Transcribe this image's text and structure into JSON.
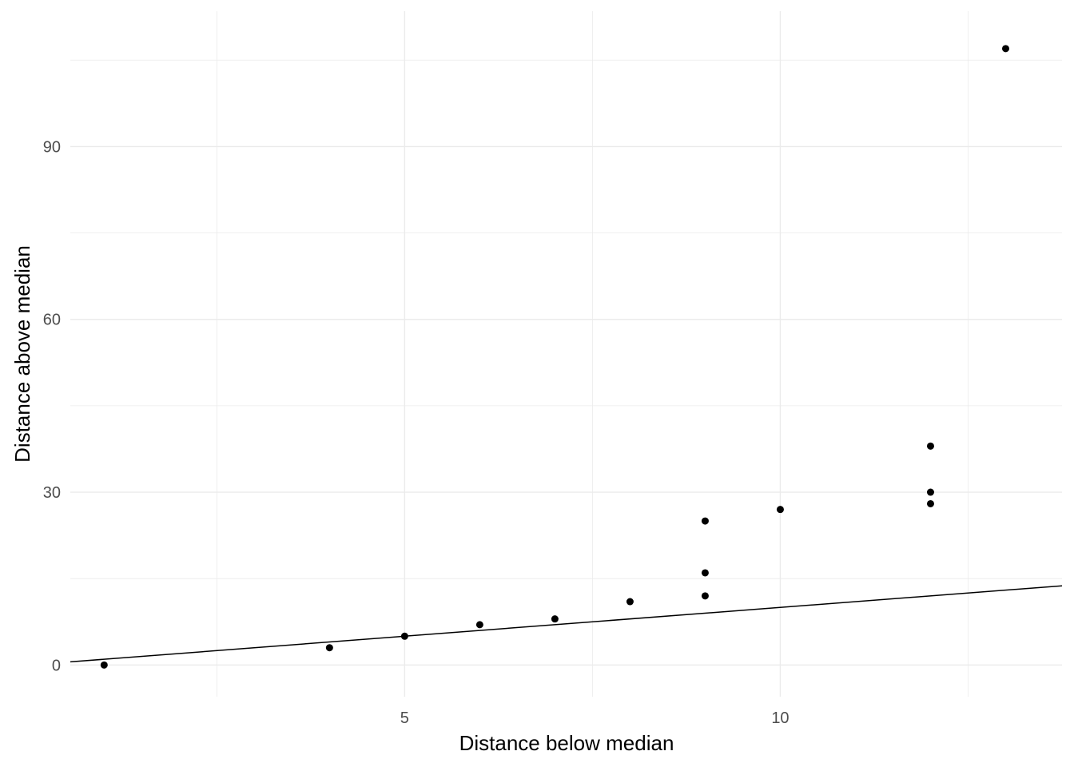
{
  "chart_data": {
    "type": "scatter",
    "title": "",
    "xlabel": "Distance below median",
    "ylabel": "Distance above median",
    "xlim": [
      0.55,
      13.75
    ],
    "ylim": [
      -5.5,
      113.5
    ],
    "x_ticks": [
      5,
      10
    ],
    "x_tick_labels": [
      "5",
      "10"
    ],
    "x_minor_ticks": [
      2.5,
      7.5,
      12.5
    ],
    "y_ticks": [
      0,
      30,
      60,
      90
    ],
    "y_tick_labels": [
      "0",
      "30",
      "60",
      "90"
    ],
    "y_minor_ticks": [
      15,
      45,
      75,
      105
    ],
    "grid": true,
    "reference_line": {
      "slope": 1,
      "intercept": 0
    },
    "points": [
      {
        "x": 1,
        "y": 0
      },
      {
        "x": 4,
        "y": 3
      },
      {
        "x": 5,
        "y": 5
      },
      {
        "x": 6,
        "y": 7
      },
      {
        "x": 7,
        "y": 8
      },
      {
        "x": 8,
        "y": 11
      },
      {
        "x": 9,
        "y": 12
      },
      {
        "x": 9,
        "y": 16
      },
      {
        "x": 9,
        "y": 25
      },
      {
        "x": 10,
        "y": 27
      },
      {
        "x": 12,
        "y": 28
      },
      {
        "x": 12,
        "y": 30
      },
      {
        "x": 12,
        "y": 38
      },
      {
        "x": 13,
        "y": 107
      }
    ],
    "colors": {
      "points": "#000000",
      "line": "#000000",
      "grid": "#ebebeb",
      "tick_text": "#4d4d4d"
    }
  }
}
